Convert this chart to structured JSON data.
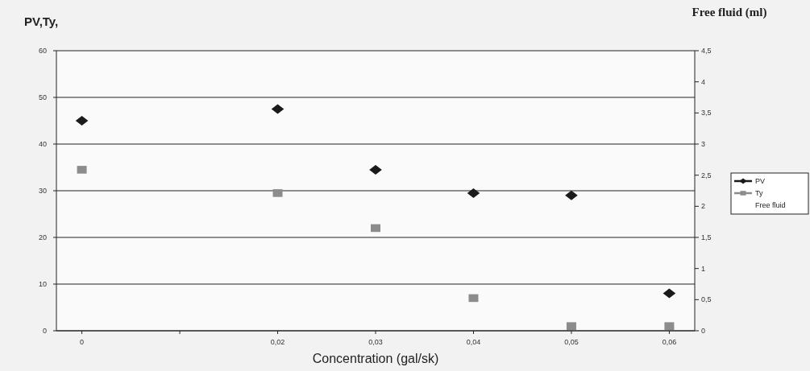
{
  "chart_data": {
    "type": "scatter",
    "ylabel": "PV,Ty,",
    "y2label": "Free fluid (ml)",
    "xlabel": "Concentration (gal/sk)",
    "categories": [
      "0",
      null,
      "0,02",
      "0,03",
      "0,04",
      "0,05",
      "0,06"
    ],
    "series": [
      {
        "name": "PV",
        "color": "#1a1a1a",
        "marker": "diamond",
        "values": [
          45,
          null,
          47.5,
          34.5,
          29.5,
          29,
          8
        ]
      },
      {
        "name": "Ty",
        "color": "#8c8c8c",
        "marker": "square",
        "values": [
          34.5,
          null,
          29.5,
          22,
          7,
          1,
          1
        ]
      },
      {
        "name": "Free fluid",
        "marker": "none",
        "values": [
          null,
          null,
          null,
          null,
          null,
          null,
          null
        ]
      }
    ],
    "ylim": [
      0,
      60
    ],
    "yticks": [
      0,
      10,
      20,
      30,
      40,
      50,
      60
    ],
    "y2lim": [
      0,
      4.5
    ],
    "y2ticks": [
      0,
      {
        "value": 0.5,
        "label": "0,5"
      },
      1,
      {
        "value": 1.5,
        "label": "1,5"
      },
      2,
      {
        "value": 2.5,
        "label": "2,5"
      },
      3,
      {
        "value": 3.5,
        "label": "3,5"
      },
      4,
      {
        "value": 4.5,
        "label": "4,5"
      }
    ],
    "grid": "y",
    "legend": "right"
  }
}
